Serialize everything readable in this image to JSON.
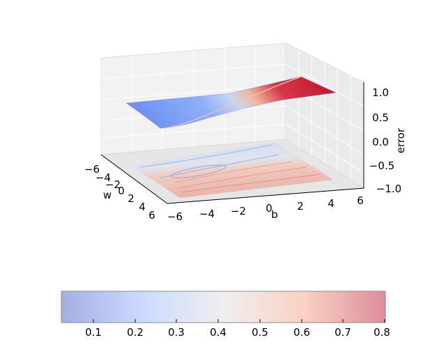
{
  "chart_data": {
    "type": "surface3d",
    "title": "",
    "xlabel": "b",
    "ylabel": "w",
    "zlabel": "error",
    "xlim": [
      -6,
      6
    ],
    "ylim": [
      -6,
      6
    ],
    "zlim": [
      -1.0,
      1.0
    ],
    "x_ticks": [
      "−6",
      "−4",
      "−2",
      "0",
      "2",
      "4",
      "6"
    ],
    "y_ticks": [
      "−6",
      "−4",
      "−2",
      "0",
      "2",
      "4",
      "6"
    ],
    "z_ticks": [
      "−1.0",
      "−0.5",
      "0.0",
      "0.5",
      "1.0"
    ],
    "surface": {
      "description_values": "error(b, w) surface",
      "min_value": 0.02,
      "max_value": 0.8,
      "colormap": "coolwarm",
      "contour_projection_z": -1.0
    },
    "colorbar": {
      "orientation": "horizontal",
      "range": [
        0.02,
        0.8
      ],
      "ticks": [
        "0.1",
        "0.2",
        "0.3",
        "0.4",
        "0.5",
        "0.6",
        "0.7",
        "0.8"
      ]
    },
    "grid": true
  }
}
